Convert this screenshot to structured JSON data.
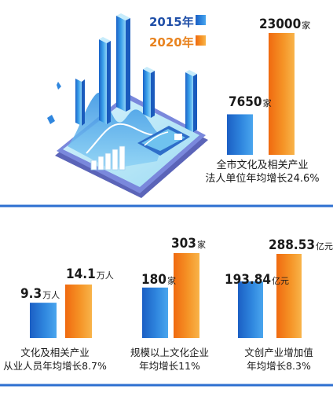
{
  "colors": {
    "y2015": "#2a7dd6",
    "y2020": "#f28a1e",
    "legend2015_text": "#1f4fa8",
    "legend2020_text": "#e8831f",
    "divider": "#2d6fd0",
    "tablet": "#6f80d6",
    "screen": "#a9e4f6"
  },
  "legend": {
    "y2015": "2015年",
    "y2020": "2020年"
  },
  "chart_data": [
    {
      "type": "bar",
      "categories": [
        "2015年",
        "2020年"
      ],
      "values": [
        7650,
        23000
      ],
      "value_labels": [
        "7650",
        "23000"
      ],
      "unit": "家",
      "caption_lines": [
        "全市文化及相关产业",
        "法人单位年均增长24.6%"
      ]
    },
    {
      "type": "bar",
      "categories": [
        "2015年",
        "2020年"
      ],
      "values": [
        9.3,
        14.1
      ],
      "value_labels": [
        "9.3",
        "14.1"
      ],
      "unit": "万人",
      "caption_lines": [
        "文化及相关产业",
        "从业人员年均增长8.7%"
      ]
    },
    {
      "type": "bar",
      "categories": [
        "2015年",
        "2020年"
      ],
      "values": [
        180,
        303
      ],
      "value_labels": [
        "180",
        "303"
      ],
      "unit": "家",
      "caption_lines": [
        "规模以上文化企业",
        "年均增长11%"
      ]
    },
    {
      "type": "bar",
      "categories": [
        "2015年",
        "2020年"
      ],
      "values": [
        193.84,
        288.53
      ],
      "value_labels": [
        "193.84",
        "288.53"
      ],
      "unit": "亿元",
      "caption_lines": [
        "文创产业增加值",
        "年均增长8.3%"
      ]
    }
  ]
}
